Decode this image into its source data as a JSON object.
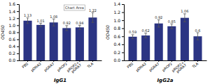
{
  "chart_data": [
    {
      "type": "bar",
      "xlabel": "IgG1",
      "ylabel": "OD450",
      "categories": [
        "PBS",
        "pDNA3",
        "pGRA7",
        "pROP2",
        "pROP2+\npGRA7",
        "TLA"
      ],
      "values": [
        1.13,
        1.01,
        1.08,
        0.92,
        0.94,
        1.22
      ],
      "errors": [
        0.08,
        0.05,
        0.1,
        0.07,
        0.06,
        0.14
      ],
      "color": "#2b3483",
      "ylim": [
        0,
        1.6
      ],
      "yticks": [
        {
          "value": 0,
          "label": "0.0"
        },
        0.2,
        0.4,
        0.6,
        0.8,
        {
          "value": 1,
          "label": "1.0"
        },
        1.2,
        1.4,
        1.6
      ],
      "grid": false,
      "data_labels": true,
      "annotations": [
        "Chart Area"
      ]
    },
    {
      "type": "bar",
      "xlabel": "IgG2a",
      "ylabel": "OD450",
      "categories": [
        "PBS",
        "pDNA3",
        "pGRA7",
        "pROP2",
        "pROP2+\npGRA7",
        "TLA"
      ],
      "values": [
        0.59,
        0.62,
        0.92,
        0.85,
        1.06,
        0.6
      ],
      "errors": [
        0.05,
        0.06,
        0.09,
        0.06,
        0.1,
        0.09
      ],
      "color": "#2b3483",
      "ylim": [
        0,
        1.4
      ],
      "yticks": [
        {
          "value": 0,
          "label": "0.0"
        },
        0.2,
        0.4,
        0.6,
        0.8,
        {
          "value": 1,
          "label": "1.0"
        },
        1.2,
        1.4
      ],
      "grid": false,
      "data_labels": true
    }
  ]
}
